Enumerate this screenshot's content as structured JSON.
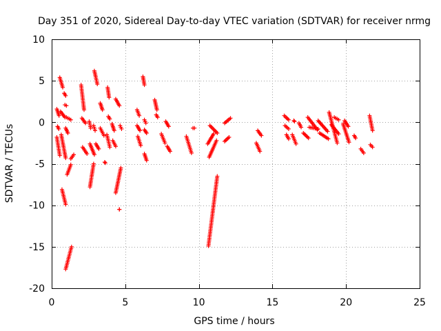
{
  "chart_data": {
    "type": "scatter",
    "title": "Day 351 of 2020, Sidereal Day-to-day VTEC variation (SDTVAR) for receiver nrmg",
    "xlabel": "GPS time / hours",
    "ylabel": "SDTVAR / TECUs",
    "xlim": [
      0,
      25
    ],
    "ylim": [
      -20,
      10
    ],
    "xticks": [
      0,
      5,
      10,
      15,
      20,
      25
    ],
    "yticks": [
      -20,
      -15,
      -10,
      -5,
      0,
      5,
      10
    ],
    "xtick_labels": [
      "0",
      "5",
      "10",
      "15",
      "20",
      "25"
    ],
    "ytick_labels": [
      "-20",
      "-15",
      "-10",
      "-5",
      "0",
      "5",
      "10"
    ],
    "grid": true,
    "marker": "+",
    "color": "#ff0000",
    "segments": [
      {
        "x": [
          0.35,
          0.5
        ],
        "y": [
          1.6,
          0.8
        ]
      },
      {
        "x": [
          0.35,
          0.55
        ],
        "y": [
          -1.8,
          -4.0
        ]
      },
      {
        "x": [
          0.4,
          0.48
        ],
        "y": [
          -0.5,
          -0.8
        ]
      },
      {
        "x": [
          0.55,
          0.75
        ],
        "y": [
          5.4,
          4.2
        ]
      },
      {
        "x": [
          0.6,
          0.9
        ],
        "y": [
          1.3,
          0.6
        ]
      },
      {
        "x": [
          0.65,
          0.95
        ],
        "y": [
          -1.5,
          -4.3
        ]
      },
      {
        "x": [
          0.7,
          0.95
        ],
        "y": [
          -8.1,
          -9.9
        ]
      },
      {
        "x": [
          0.85,
          0.95
        ],
        "y": [
          3.5,
          3.2
        ]
      },
      {
        "x": [
          0.9,
          1.0
        ],
        "y": [
          2.1,
          2.0
        ]
      },
      {
        "x": [
          0.95,
          1.1
        ],
        "y": [
          -0.7,
          -1.3
        ]
      },
      {
        "x": [
          0.95,
          1.35
        ],
        "y": [
          -17.7,
          -15.0
        ]
      },
      {
        "x": [
          1.0,
          1.3
        ],
        "y": [
          0.6,
          0.3
        ]
      },
      {
        "x": [
          1.05,
          1.3
        ],
        "y": [
          -6.3,
          -5.1
        ]
      },
      {
        "x": [
          1.3,
          1.5
        ],
        "y": [
          -4.4,
          -3.9
        ]
      },
      {
        "x": [
          2.0,
          2.2
        ],
        "y": [
          4.5,
          1.5
        ]
      },
      {
        "x": [
          2.05,
          2.3
        ],
        "y": [
          0.5,
          -0.1
        ]
      },
      {
        "x": [
          2.1,
          2.4
        ],
        "y": [
          -3.0,
          -3.8
        ]
      },
      {
        "x": [
          2.55,
          2.65
        ],
        "y": [
          0.1,
          -0.7
        ]
      },
      {
        "x": [
          2.6,
          2.85
        ],
        "y": [
          -7.8,
          -5.0
        ]
      },
      {
        "x": [
          2.6,
          2.9
        ],
        "y": [
          -2.6,
          -3.9
        ]
      },
      {
        "x": [
          2.85,
          2.95
        ],
        "y": [
          -0.4,
          -1.0
        ]
      },
      {
        "x": [
          2.9,
          3.1
        ],
        "y": [
          6.2,
          4.6
        ]
      },
      {
        "x": [
          3.0,
          3.2
        ],
        "y": [
          -2.6,
          -3.2
        ]
      },
      {
        "x": [
          3.3,
          3.45
        ],
        "y": [
          2.3,
          1.5
        ]
      },
      {
        "x": [
          3.3,
          3.55
        ],
        "y": [
          -0.7,
          -1.6
        ]
      },
      {
        "x": [
          3.6,
          3.65
        ],
        "y": [
          -4.8,
          -4.9
        ]
      },
      {
        "x": [
          3.75,
          3.95
        ],
        "y": [
          -1.5,
          -3.0
        ]
      },
      {
        "x": [
          3.8,
          3.9
        ],
        "y": [
          4.2,
          3.0
        ]
      },
      {
        "x": [
          3.85,
          3.95
        ],
        "y": [
          0.7,
          0.4
        ]
      },
      {
        "x": [
          4.1,
          4.25
        ],
        "y": [
          -0.2,
          -1.0
        ]
      },
      {
        "x": [
          4.15,
          4.35
        ],
        "y": [
          -2.2,
          -2.9
        ]
      },
      {
        "x": [
          4.35,
          4.6
        ],
        "y": [
          2.8,
          2.0
        ]
      },
      {
        "x": [
          4.35,
          4.7
        ],
        "y": [
          -8.5,
          -5.5
        ]
      },
      {
        "x": [
          4.6,
          4.6
        ],
        "y": [
          -10.5,
          -10.5
        ]
      },
      {
        "x": [
          4.65,
          4.75
        ],
        "y": [
          -0.4,
          -0.8
        ]
      },
      {
        "x": [
          5.8,
          5.95
        ],
        "y": [
          1.5,
          0.8
        ]
      },
      {
        "x": [
          5.8,
          6.0
        ],
        "y": [
          -0.4,
          -1.0
        ]
      },
      {
        "x": [
          5.85,
          6.05
        ],
        "y": [
          -1.7,
          -2.8
        ]
      },
      {
        "x": [
          6.2,
          6.3
        ],
        "y": [
          5.5,
          4.5
        ]
      },
      {
        "x": [
          6.3,
          6.45
        ],
        "y": [
          -0.9,
          -1.3
        ]
      },
      {
        "x": [
          6.3,
          6.45
        ],
        "y": [
          -3.8,
          -4.6
        ]
      },
      {
        "x": [
          6.3,
          6.4
        ],
        "y": [
          0.3,
          -0.1
        ]
      },
      {
        "x": [
          7.0,
          7.15
        ],
        "y": [
          2.7,
          1.5
        ]
      },
      {
        "x": [
          7.1,
          7.2
        ],
        "y": [
          0.9,
          0.6
        ]
      },
      {
        "x": [
          7.45,
          7.7
        ],
        "y": [
          -1.4,
          -2.5
        ]
      },
      {
        "x": [
          7.75,
          7.95
        ],
        "y": [
          0.1,
          -0.5
        ]
      },
      {
        "x": [
          7.85,
          8.05
        ],
        "y": [
          -2.9,
          -3.5
        ]
      },
      {
        "x": [
          9.15,
          9.5
        ],
        "y": [
          -1.7,
          -3.7
        ]
      },
      {
        "x": [
          9.6,
          9.7
        ],
        "y": [
          -0.7,
          -0.7
        ]
      },
      {
        "x": [
          10.6,
          11.0
        ],
        "y": [
          -2.6,
          -1.4
        ]
      },
      {
        "x": [
          10.65,
          11.25
        ],
        "y": [
          -14.9,
          -6.5
        ]
      },
      {
        "x": [
          10.7,
          11.2
        ],
        "y": [
          -4.2,
          -2.2
        ]
      },
      {
        "x": [
          10.75,
          11.25
        ],
        "y": [
          -0.4,
          -1.3
        ]
      },
      {
        "x": [
          11.75,
          12.05
        ],
        "y": [
          -2.3,
          -1.8
        ]
      },
      {
        "x": [
          11.75,
          12.15
        ],
        "y": [
          -0.1,
          0.5
        ]
      },
      {
        "x": [
          13.9,
          14.15
        ],
        "y": [
          -2.5,
          -3.5
        ]
      },
      {
        "x": [
          14.0,
          14.25
        ],
        "y": [
          -1.0,
          -1.6
        ]
      },
      {
        "x": [
          15.8,
          16.1
        ],
        "y": [
          0.8,
          0.3
        ]
      },
      {
        "x": [
          15.85,
          16.1
        ],
        "y": [
          -0.4,
          -0.8
        ]
      },
      {
        "x": [
          15.95,
          16.1
        ],
        "y": [
          -1.5,
          -2.0
        ]
      },
      {
        "x": [
          16.35,
          16.6
        ],
        "y": [
          -1.5,
          -2.6
        ]
      },
      {
        "x": [
          16.45,
          16.5
        ],
        "y": [
          0.2,
          0.1
        ]
      },
      {
        "x": [
          16.8,
          16.95
        ],
        "y": [
          -0.1,
          -0.6
        ]
      },
      {
        "x": [
          17.1,
          17.45
        ],
        "y": [
          -1.3,
          -1.9
        ]
      },
      {
        "x": [
          17.4,
          18.05
        ],
        "y": [
          0.6,
          -0.9
        ]
      },
      {
        "x": [
          17.5,
          18.1
        ],
        "y": [
          -0.6,
          -0.8
        ]
      },
      {
        "x": [
          18.1,
          18.75
        ],
        "y": [
          0.2,
          -1.1
        ]
      },
      {
        "x": [
          18.2,
          18.8
        ],
        "y": [
          -1.3,
          -2.0
        ]
      },
      {
        "x": [
          18.85,
          19.4
        ],
        "y": [
          1.2,
          -2.5
        ]
      },
      {
        "x": [
          19.0,
          19.5
        ],
        "y": [
          -0.3,
          -1.4
        ]
      },
      {
        "x": [
          19.2,
          19.5
        ],
        "y": [
          0.6,
          0.3
        ]
      },
      {
        "x": [
          19.8,
          20.2
        ],
        "y": [
          -0.2,
          -2.4
        ]
      },
      {
        "x": [
          19.9,
          20.15
        ],
        "y": [
          0.2,
          -0.5
        ]
      },
      {
        "x": [
          20.55,
          20.65
        ],
        "y": [
          -1.6,
          -1.9
        ]
      },
      {
        "x": [
          21.0,
          21.2
        ],
        "y": [
          -3.2,
          -3.7
        ]
      },
      {
        "x": [
          21.6,
          21.8
        ],
        "y": [
          0.8,
          -1.0
        ]
      },
      {
        "x": [
          21.65,
          21.8
        ],
        "y": [
          -2.7,
          -3.0
        ]
      }
    ]
  }
}
